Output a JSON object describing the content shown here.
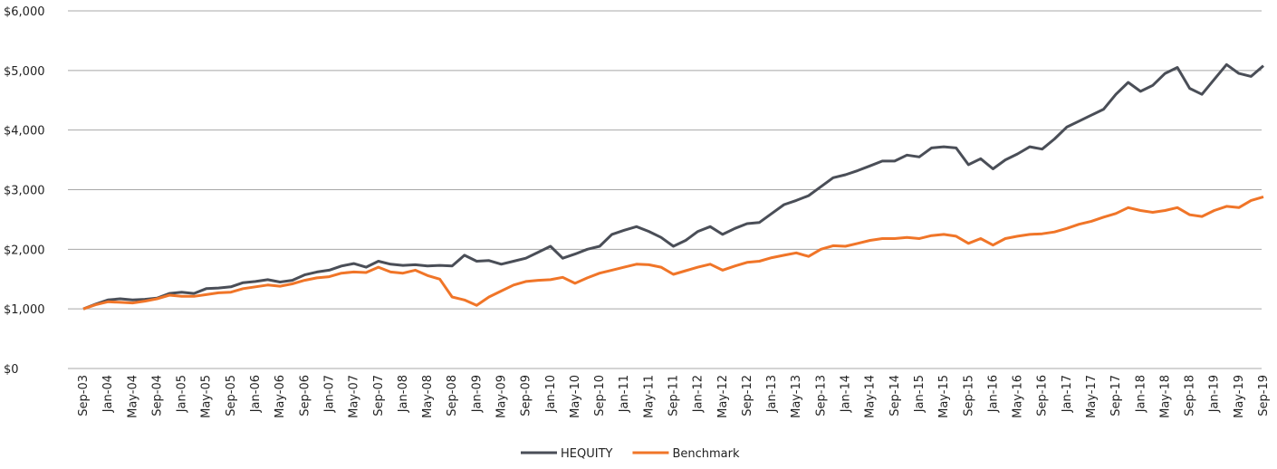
{
  "chart_data": {
    "type": "line",
    "categories": [
      "Sep-03",
      null,
      "Jan-04",
      null,
      "May-04",
      null,
      "Sep-04",
      null,
      "Jan-05",
      null,
      "May-05",
      null,
      "Sep-05",
      null,
      "Jan-06",
      null,
      "May-06",
      null,
      "Sep-06",
      null,
      "Jan-07",
      null,
      "May-07",
      null,
      "Sep-07",
      null,
      "Jan-08",
      null,
      "May-08",
      null,
      "Sep-08",
      null,
      "Jan-09",
      null,
      "May-09",
      null,
      "Sep-09",
      null,
      "Jan-10",
      null,
      "May-10",
      null,
      "Sep-10",
      null,
      "Jan-11",
      null,
      "May-11",
      null,
      "Sep-11",
      null,
      "Jan-12",
      null,
      "May-12",
      null,
      "Sep-12",
      null,
      "Jan-13",
      null,
      "May-13",
      null,
      "Sep-13",
      null,
      "Jan-14",
      null,
      "May-14",
      null,
      "Sep-14",
      null,
      "Jan-15",
      null,
      "May-15",
      null,
      "Sep-15",
      null,
      "Jan-16",
      null,
      "May-16",
      null,
      "Sep-16",
      null,
      "Jan-17",
      null,
      "May-17",
      null,
      "Sep-17",
      null,
      "Jan-18",
      null,
      "May-18",
      null,
      "Sep-18",
      null,
      "Jan-19",
      null,
      "May-19",
      null,
      "Sep-19"
    ],
    "series": [
      {
        "name": "HEQUITY",
        "color": "#4a4e57",
        "values": [
          1000,
          1080,
          1150,
          1170,
          1150,
          1160,
          1180,
          1260,
          1280,
          1260,
          1340,
          1350,
          1370,
          1440,
          1460,
          1490,
          1450,
          1480,
          1570,
          1620,
          1650,
          1720,
          1760,
          1700,
          1800,
          1750,
          1730,
          1740,
          1720,
          1730,
          1720,
          1900,
          1800,
          1810,
          1750,
          1800,
          1850,
          1950,
          2050,
          1850,
          1920,
          2000,
          2050,
          2250,
          2320,
          2380,
          2300,
          2200,
          2050,
          2150,
          2300,
          2380,
          2250,
          2350,
          2430,
          2450,
          2600,
          2750,
          2820,
          2900,
          3050,
          3200,
          3250,
          3320,
          3400,
          3480,
          3480,
          3580,
          3550,
          3700,
          3720,
          3700,
          3420,
          3520,
          3350,
          3500,
          3600,
          3720,
          3680,
          3850,
          4050,
          4150,
          4250,
          4350,
          4600,
          4800,
          4650,
          4750,
          4950,
          5050,
          4700,
          4600,
          4850,
          5100,
          4950,
          4900,
          5080
        ]
      },
      {
        "name": "Benchmark",
        "color": "#f07528",
        "values": [
          1000,
          1070,
          1120,
          1110,
          1100,
          1130,
          1170,
          1230,
          1210,
          1210,
          1240,
          1270,
          1280,
          1340,
          1370,
          1400,
          1380,
          1420,
          1480,
          1520,
          1540,
          1600,
          1620,
          1610,
          1700,
          1620,
          1600,
          1650,
          1560,
          1500,
          1200,
          1150,
          1060,
          1200,
          1300,
          1400,
          1460,
          1480,
          1490,
          1530,
          1430,
          1520,
          1600,
          1650,
          1700,
          1750,
          1740,
          1700,
          1580,
          1640,
          1700,
          1750,
          1650,
          1720,
          1780,
          1800,
          1860,
          1900,
          1940,
          1880,
          2000,
          2060,
          2050,
          2100,
          2150,
          2180,
          2180,
          2200,
          2180,
          2230,
          2250,
          2220,
          2100,
          2180,
          2070,
          2180,
          2220,
          2250,
          2260,
          2290,
          2350,
          2420,
          2470,
          2540,
          2600,
          2700,
          2650,
          2620,
          2650,
          2700,
          2580,
          2550,
          2650,
          2720,
          2700,
          2820,
          2880
        ]
      }
    ],
    "ylim": [
      0,
      6000
    ],
    "yticks": [
      {
        "value": 0,
        "label": "$0"
      },
      {
        "value": 1000,
        "label": "$1,000"
      },
      {
        "value": 2000,
        "label": "$2,000"
      },
      {
        "value": 3000,
        "label": "$3,000"
      },
      {
        "value": 4000,
        "label": "$4,000"
      },
      {
        "value": 5000,
        "label": "$5,000"
      },
      {
        "value": 6000,
        "label": "$6,000"
      }
    ],
    "grid": true,
    "legend": "bottom"
  }
}
